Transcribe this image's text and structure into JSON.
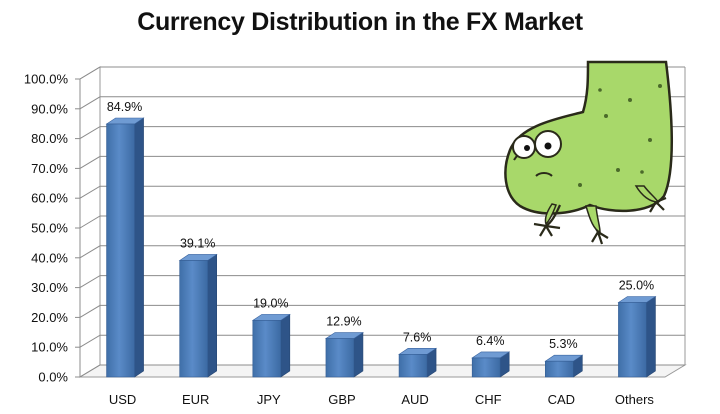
{
  "chart_data": {
    "type": "bar",
    "title": "Currency Distribution in the FX Market",
    "xlabel": "",
    "ylabel": "",
    "categories": [
      "USD",
      "EUR",
      "JPY",
      "GBP",
      "AUD",
      "CHF",
      "CAD",
      "Others"
    ],
    "values": [
      84.9,
      39.1,
      19.0,
      12.9,
      7.6,
      6.4,
      5.3,
      25.0
    ],
    "data_labels": [
      "84.9%",
      "39.1%",
      "19.0%",
      "12.9%",
      "7.6%",
      "6.4%",
      "5.3%",
      "25.0%"
    ],
    "ylim": [
      0,
      100
    ],
    "yticks": [
      "0.0%",
      "10.0%",
      "20.0%",
      "30.0%",
      "40.0%",
      "50.0%",
      "60.0%",
      "70.0%",
      "80.0%",
      "90.0%",
      "100.0%"
    ],
    "grid": true,
    "style": "3d",
    "bar_color": "#4f81bd",
    "legend": "none"
  },
  "decoration": {
    "icon": "green-cartoon-monster-icon",
    "color": "#a8d86a"
  }
}
